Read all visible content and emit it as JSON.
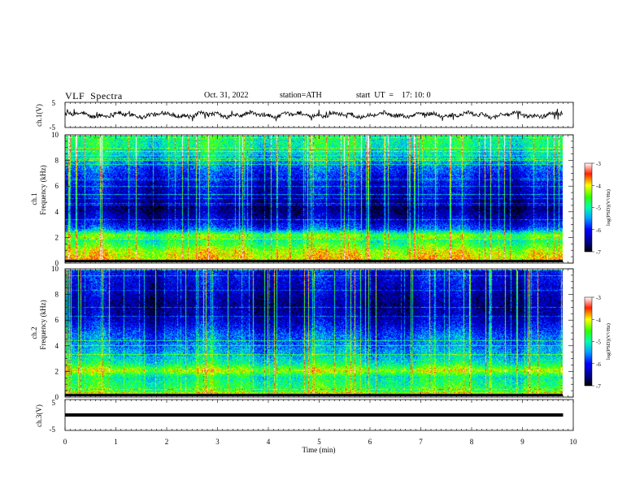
{
  "header": {
    "title": "VLF  Spectra",
    "date": "Oct. 31, 2022",
    "station": "station=ATH",
    "start": "start  UT  =    17: 10: 0"
  },
  "chart_data": {
    "type": "heatmap",
    "xlabel": "Time  (min)",
    "x_ticks": [
      "0",
      "1",
      "2",
      "3",
      "4",
      "5",
      "6",
      "7",
      "8",
      "9",
      "10"
    ],
    "xlim": [
      0,
      10
    ],
    "panels": [
      {
        "id": "ch1-waveform",
        "type": "line",
        "ylabel": "ch.1(V)",
        "ylim": [
          -5,
          5
        ],
        "y_ticks": [
          "5",
          "-5"
        ],
        "data_end_min": 9.8
      },
      {
        "id": "ch1-spectrogram",
        "type": "heatmap",
        "ylabel_top": "ch.1",
        "ylabel": "Frequency  (kHz)",
        "ylim": [
          0,
          10
        ],
        "y_ticks": [
          "0",
          "2",
          "4",
          "6",
          "8",
          "10"
        ],
        "profile": [
          {
            "f": 0.3,
            "v": -4.0
          },
          {
            "f": 0.9,
            "v": -4.2
          },
          {
            "f": 1.3,
            "v": -4.6
          },
          {
            "f": 1.7,
            "v": -4.9
          },
          {
            "f": 2.1,
            "v": -4.4
          },
          {
            "f": 2.6,
            "v": -5.7
          },
          {
            "f": 3.2,
            "v": -6.2
          },
          {
            "f": 4.2,
            "v": -6.6
          },
          {
            "f": 5.2,
            "v": -6.3
          },
          {
            "f": 6.5,
            "v": -6.1
          },
          {
            "f": 7.5,
            "v": -5.7
          },
          {
            "f": 8.5,
            "v": -5.2
          },
          {
            "f": 9.4,
            "v": -4.9
          }
        ],
        "colorbar": {
          "label": "log(PSD)(V²/Hz)",
          "ticks": [
            "-3",
            "-4",
            "-5",
            "-6",
            "-7"
          ],
          "range": [
            -7,
            -3
          ]
        }
      },
      {
        "id": "ch2-spectrogram",
        "type": "heatmap",
        "ylabel_top": "ch.2",
        "ylabel": "Frequency  (kHz)",
        "ylim": [
          0,
          10
        ],
        "y_ticks": [
          "0",
          "2",
          "4",
          "6",
          "8",
          "10"
        ],
        "profile": [
          {
            "f": 0.3,
            "v": -4.6
          },
          {
            "f": 0.9,
            "v": -4.8
          },
          {
            "f": 1.5,
            "v": -5.0
          },
          {
            "f": 2.0,
            "v": -4.2
          },
          {
            "f": 2.6,
            "v": -5.0
          },
          {
            "f": 3.2,
            "v": -5.3
          },
          {
            "f": 4.0,
            "v": -5.6
          },
          {
            "f": 4.8,
            "v": -5.7
          },
          {
            "f": 5.6,
            "v": -6.1
          },
          {
            "f": 6.4,
            "v": -6.4
          },
          {
            "f": 7.3,
            "v": -6.5
          },
          {
            "f": 8.3,
            "v": -6.3
          },
          {
            "f": 9.4,
            "v": -6.1
          }
        ],
        "colorbar": {
          "label": "log(PSD)(V²/Hz)",
          "ticks": [
            "-3",
            "-4",
            "-5",
            "-6",
            "-7"
          ],
          "range": [
            -7,
            -3
          ]
        }
      },
      {
        "id": "ch3-waveform",
        "type": "line",
        "ylabel": "ch.3(V)",
        "ylim": [
          -5,
          5
        ],
        "y_ticks": [
          "5",
          "-5"
        ],
        "level": 0,
        "data_end_min": 9.8
      }
    ],
    "data_end_min": 9.8
  }
}
